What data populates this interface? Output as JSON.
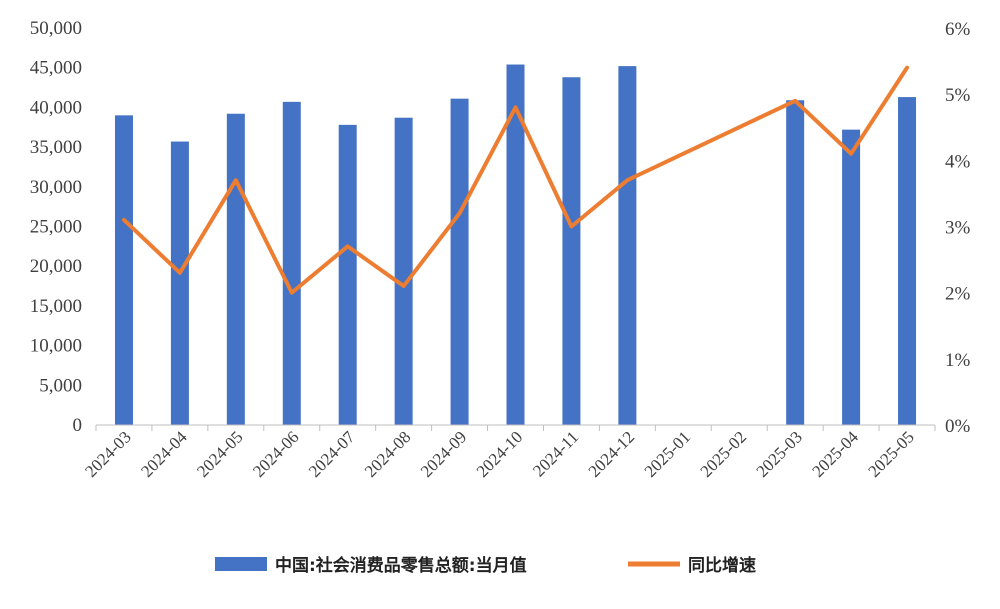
{
  "chart_data": {
    "type": "bar+line",
    "categories": [
      "2024-03",
      "2024-04",
      "2024-05",
      "2024-06",
      "2024-07",
      "2024-08",
      "2024-09",
      "2024-10",
      "2024-11",
      "2024-12",
      "2025-01",
      "2025-02",
      "2025-03",
      "2025-04",
      "2025-05"
    ],
    "series": [
      {
        "name": "中国:社会消费品零售总额:当月值",
        "type": "bar",
        "axis": "left",
        "color": "#4472C4",
        "values": [
          39000,
          35700,
          39200,
          40700,
          37800,
          38700,
          41100,
          45400,
          43800,
          45200,
          null,
          null,
          40900,
          37200,
          41300
        ]
      },
      {
        "name": "同比增速",
        "type": "line",
        "axis": "right",
        "color": "#ED7D31",
        "values": [
          3.1,
          2.3,
          3.7,
          2.0,
          2.7,
          2.1,
          3.2,
          4.8,
          3.0,
          3.7,
          null,
          null,
          4.9,
          4.1,
          5.4
        ]
      }
    ],
    "left_axis": {
      "ylim": [
        0,
        50000
      ],
      "ticks": [
        "0",
        "5,000",
        "10,000",
        "15,000",
        "20,000",
        "25,000",
        "30,000",
        "35,000",
        "40,000",
        "45,000",
        "50,000"
      ]
    },
    "right_axis": {
      "ylim": [
        0,
        6
      ],
      "ticks": [
        "0%",
        "1%",
        "2%",
        "3%",
        "4%",
        "5%",
        "6%"
      ]
    },
    "grid": false,
    "legend_position": "bottom"
  }
}
